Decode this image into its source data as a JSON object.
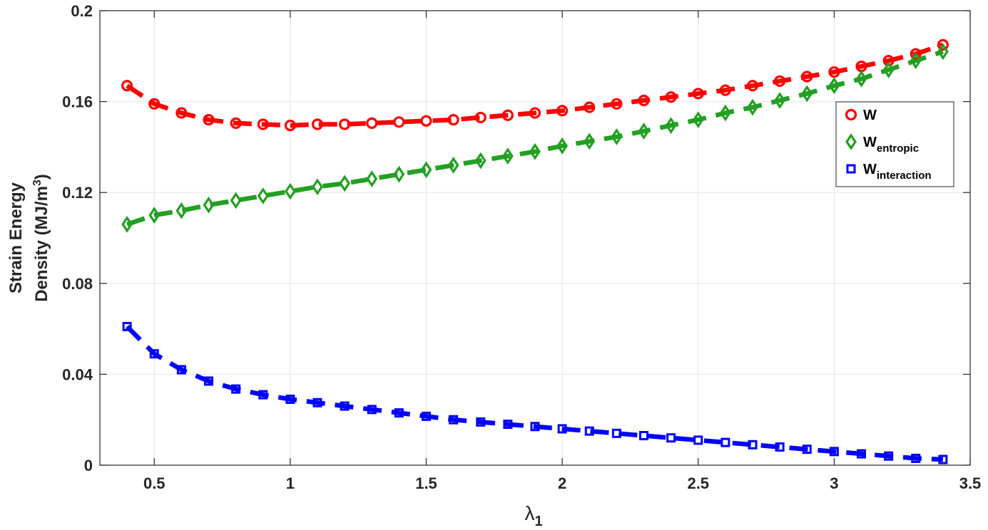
{
  "chart_data": {
    "type": "line",
    "xlabel": "λ",
    "xlabel_sub": "1",
    "ylabel_line1": "Strain Energy",
    "ylabel_line2": "Density (MJ/m",
    "ylabel_sup": "3",
    "ylabel_end": ")",
    "xlim": [
      0.3,
      3.5
    ],
    "ylim": [
      0,
      0.2
    ],
    "xticks": [
      0.5,
      1,
      1.5,
      2,
      2.5,
      3,
      3.5
    ],
    "yticks": [
      0,
      0.04,
      0.08,
      0.12,
      0.16,
      0.2
    ],
    "xtick_labels": [
      "0.5",
      "1",
      "1.5",
      "2",
      "2.5",
      "3",
      "3.5"
    ],
    "ytick_labels": [
      "0",
      "0.04",
      "0.08",
      "0.12",
      "0.16",
      "0.2"
    ],
    "grid": true,
    "legend_position": "top-right",
    "x": [
      0.4,
      0.5,
      0.6,
      0.7,
      0.8,
      0.9,
      1.0,
      1.1,
      1.2,
      1.3,
      1.4,
      1.5,
      1.6,
      1.7,
      1.8,
      1.9,
      2.0,
      2.1,
      2.2,
      2.3,
      2.4,
      2.5,
      2.6,
      2.7,
      2.8,
      2.9,
      3.0,
      3.1,
      3.2,
      3.3,
      3.4
    ],
    "series": [
      {
        "name": "W",
        "sub": "",
        "marker": "circle",
        "color": "#ff0000",
        "values": [
          0.167,
          0.159,
          0.155,
          0.152,
          0.1505,
          0.15,
          0.1495,
          0.15,
          0.15,
          0.1505,
          0.151,
          0.1515,
          0.152,
          0.153,
          0.154,
          0.155,
          0.156,
          0.1575,
          0.159,
          0.1605,
          0.162,
          0.1635,
          0.165,
          0.167,
          0.169,
          0.171,
          0.173,
          0.1755,
          0.178,
          0.181,
          0.185
        ]
      },
      {
        "name": "W",
        "sub": "entropic",
        "marker": "diamond",
        "color": "#22a022",
        "values": [
          0.106,
          0.11,
          0.112,
          0.1145,
          0.1165,
          0.1185,
          0.1205,
          0.1225,
          0.124,
          0.126,
          0.128,
          0.13,
          0.132,
          0.134,
          0.136,
          0.138,
          0.1405,
          0.1425,
          0.1445,
          0.147,
          0.1495,
          0.152,
          0.155,
          0.1575,
          0.1605,
          0.1635,
          0.167,
          0.17,
          0.174,
          0.178,
          0.182
        ]
      },
      {
        "name": "W",
        "sub": "interaction",
        "marker": "square",
        "color": "#0000ff",
        "values": [
          0.061,
          0.049,
          0.042,
          0.037,
          0.0335,
          0.031,
          0.029,
          0.0275,
          0.026,
          0.0245,
          0.023,
          0.0215,
          0.02,
          0.019,
          0.018,
          0.017,
          0.016,
          0.015,
          0.014,
          0.013,
          0.012,
          0.011,
          0.01,
          0.009,
          0.008,
          0.007,
          0.006,
          0.005,
          0.004,
          0.003,
          0.0025
        ]
      }
    ]
  }
}
